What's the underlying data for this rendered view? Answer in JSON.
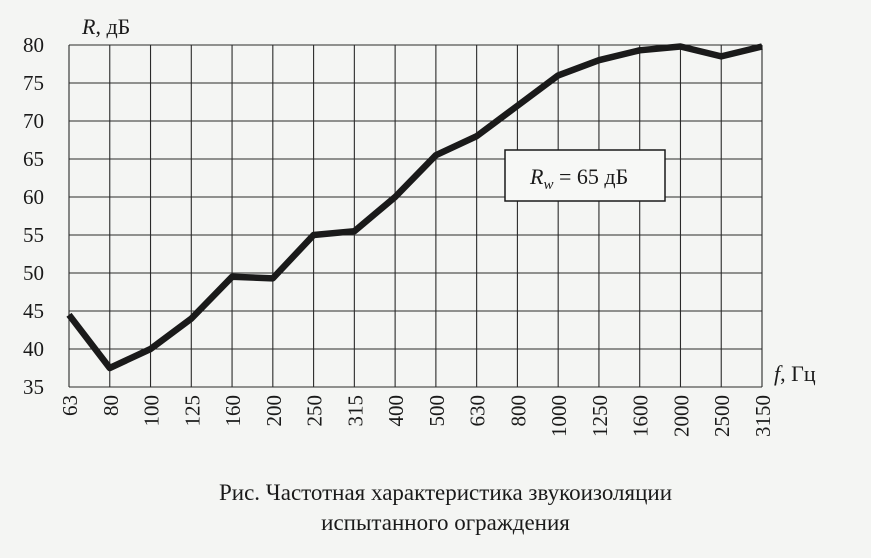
{
  "chart_data": {
    "type": "line",
    "ylabel_italic": "R",
    "ylabel_unit": ", дБ",
    "xlabel_italic": "f",
    "xlabel_unit": ", Гц",
    "categories": [
      "63",
      "80",
      "100",
      "125",
      "160",
      "200",
      "250",
      "315",
      "400",
      "500",
      "630",
      "800",
      "1000",
      "1250",
      "1600",
      "2000",
      "2500",
      "3150"
    ],
    "series": [
      {
        "values": [
          44.5,
          37.5,
          40,
          44,
          49.5,
          49.3,
          55,
          55.5,
          60,
          65.5,
          68,
          72,
          76,
          78,
          79.3,
          79.8,
          78.5,
          79.8
        ]
      }
    ],
    "ylim": [
      35,
      80
    ],
    "yticks": [
      35,
      40,
      45,
      50,
      55,
      60,
      65,
      70,
      75,
      80
    ],
    "grid": true,
    "annotation": {
      "italic": "R",
      "sub": "w",
      "rest": " = 65 дБ"
    }
  },
  "caption": {
    "line1": "Рис. Частотная характеристика звукоизоляции",
    "line2": "испытанного ограждения"
  },
  "colors": {
    "line": "#1a1a1a",
    "grid": "#2a2a2a",
    "background": "#f4f5f3"
  }
}
